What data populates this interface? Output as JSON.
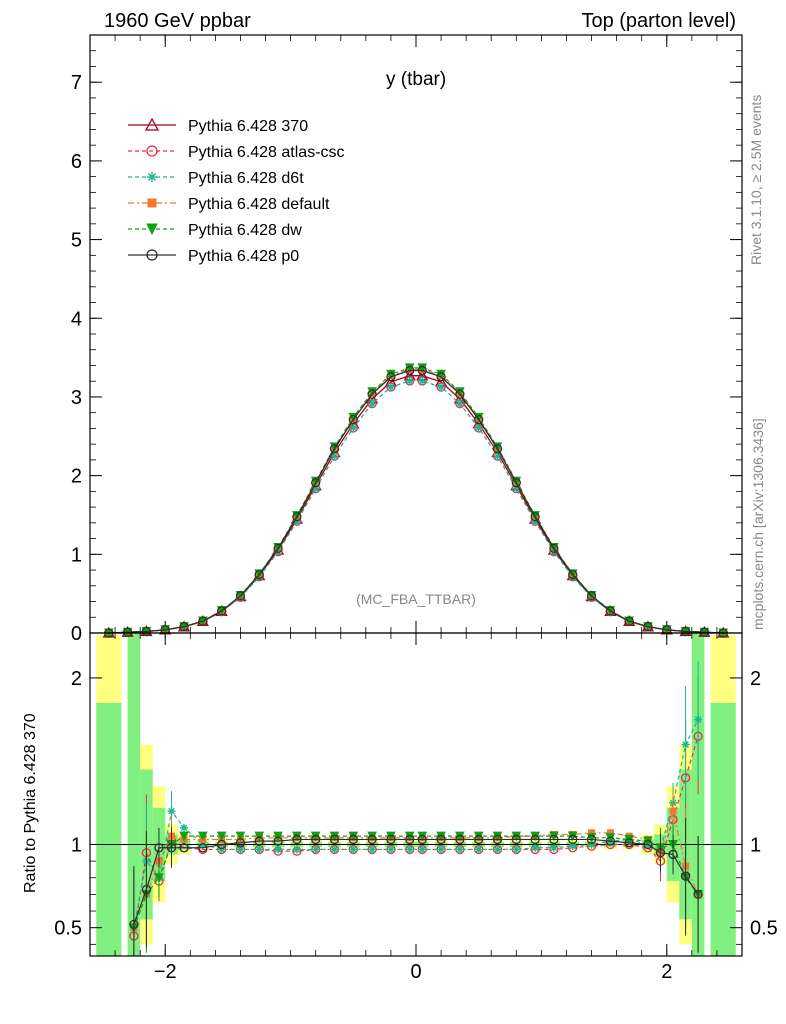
{
  "header": {
    "left": "1960 GeV ppbar",
    "right": "Top (parton level)"
  },
  "side": {
    "rivet": "Rivet 3.1.10, ≥ 2.5M events",
    "mcplots": "mcplots.cern.ch [arXiv:1306.3436]"
  },
  "colors": {
    "p370": "#a0001c",
    "atlas": "#e8304a",
    "d6t": "#18b890",
    "default": "#f07830",
    "dw": "#10a010",
    "p0": "#303030",
    "band_yellow": "#ffff80",
    "band_green": "#80f080"
  },
  "chart_data": {
    "type": "line",
    "title": "y (tbar)",
    "annotation": "(MC_FBA_TTBAR)",
    "xlim": [
      -2.6,
      2.6
    ],
    "main": {
      "ylim": [
        0,
        7.6
      ],
      "yticks": [
        0,
        1,
        2,
        3,
        4,
        5,
        6,
        7
      ],
      "ytick_labels": [
        "0",
        "1",
        "2",
        "3",
        "4",
        "5",
        "6",
        "7"
      ]
    },
    "ratio": {
      "ylabel": "Ratio to Pythia 6.428 370",
      "ylim": [
        0.33,
        2.27
      ],
      "yticks": [
        0.5,
        1,
        2
      ],
      "ytick_labels": [
        "0.5",
        "1",
        "2"
      ]
    },
    "xticks": [
      -2,
      0,
      2
    ],
    "xtick_labels": [
      "−2",
      "0",
      "2"
    ],
    "legend": {
      "placement": "top-left",
      "entries": [
        "Pythia 6.428 370",
        "Pythia 6.428 atlas-csc",
        "Pythia 6.428 d6t",
        "Pythia 6.428 default",
        "Pythia 6.428 dw",
        "Pythia 6.428 p0"
      ]
    },
    "distribution": {
      "x": [
        -2.45,
        -2.3,
        -2.15,
        -2.0,
        -1.85,
        -1.7,
        -1.55,
        -1.4,
        -1.25,
        -1.1,
        -0.95,
        -0.8,
        -0.65,
        -0.5,
        -0.35,
        -0.2,
        -0.05,
        0.05,
        0.2,
        0.35,
        0.5,
        0.65,
        0.8,
        0.95,
        1.1,
        1.25,
        1.4,
        1.55,
        1.7,
        1.85,
        2.0,
        2.15,
        2.3,
        2.45
      ],
      "reference": [
        0.0,
        0.01,
        0.02,
        0.04,
        0.08,
        0.15,
        0.28,
        0.47,
        0.74,
        1.07,
        1.47,
        1.9,
        2.33,
        2.7,
        3.02,
        3.24,
        3.32,
        3.32,
        3.24,
        3.02,
        2.7,
        2.33,
        1.9,
        1.47,
        1.07,
        0.74,
        0.47,
        0.28,
        0.15,
        0.08,
        0.04,
        0.02,
        0.01,
        0.0
      ]
    },
    "ratio_series": {
      "x": [
        -2.25,
        -2.15,
        -2.05,
        -1.95,
        -1.85,
        -1.7,
        -1.55,
        -1.4,
        -1.25,
        -1.1,
        -0.95,
        -0.8,
        -0.65,
        -0.5,
        -0.35,
        -0.2,
        -0.05,
        0.05,
        0.2,
        0.35,
        0.5,
        0.65,
        0.8,
        0.95,
        1.1,
        1.25,
        1.4,
        1.55,
        1.7,
        1.85,
        1.95,
        2.05,
        2.15,
        2.25
      ],
      "series": [
        {
          "name": "Pythia 6.428 atlas-csc",
          "key": "atlas",
          "values": [
            0.45,
            0.95,
            0.78,
            1.02,
            0.98,
            0.97,
            0.97,
            0.97,
            0.97,
            0.96,
            0.96,
            0.97,
            0.97,
            0.97,
            0.97,
            0.97,
            0.97,
            0.97,
            0.97,
            0.97,
            0.97,
            0.97,
            0.97,
            0.97,
            0.97,
            0.98,
            0.99,
            1.0,
            1.0,
            0.98,
            0.9,
            1.15,
            1.4,
            1.65
          ]
        },
        {
          "name": "Pythia 6.428 d6t",
          "key": "d6t",
          "values": [
            0.5,
            0.9,
            0.8,
            1.2,
            1.1,
            1.0,
            0.97,
            0.97,
            0.97,
            0.97,
            0.97,
            0.97,
            0.97,
            0.97,
            0.97,
            0.97,
            0.97,
            0.97,
            0.97,
            0.97,
            0.97,
            0.97,
            0.97,
            0.98,
            0.98,
            0.99,
            1.0,
            1.02,
            1.03,
            1.0,
            0.97,
            1.25,
            1.6,
            1.75
          ]
        },
        {
          "name": "Pythia 6.428 default",
          "key": "default",
          "values": [
            0.5,
            0.7,
            0.9,
            1.05,
            1.03,
            1.03,
            1.03,
            1.03,
            1.04,
            1.04,
            1.04,
            1.04,
            1.04,
            1.04,
            1.04,
            1.04,
            1.04,
            1.04,
            1.04,
            1.04,
            1.04,
            1.04,
            1.05,
            1.05,
            1.06,
            1.06,
            1.07,
            1.07,
            1.05,
            1.03,
            0.95,
            1.2,
            0.87,
            0.7
          ]
        },
        {
          "name": "Pythia 6.428 dw",
          "key": "dw",
          "values": [
            0.5,
            0.7,
            0.8,
            1.0,
            1.05,
            1.05,
            1.05,
            1.05,
            1.05,
            1.05,
            1.05,
            1.05,
            1.05,
            1.05,
            1.05,
            1.05,
            1.05,
            1.05,
            1.05,
            1.05,
            1.05,
            1.05,
            1.05,
            1.05,
            1.05,
            1.05,
            1.04,
            1.04,
            1.03,
            1.02,
            0.98,
            1.0,
            0.8,
            0.7
          ]
        },
        {
          "name": "Pythia 6.428 p0",
          "key": "p0",
          "values": [
            0.52,
            0.73,
            0.98,
            0.98,
            0.98,
            0.98,
            1.0,
            1.01,
            1.02,
            1.02,
            1.03,
            1.03,
            1.03,
            1.03,
            1.03,
            1.03,
            1.03,
            1.03,
            1.03,
            1.03,
            1.03,
            1.03,
            1.03,
            1.03,
            1.03,
            1.03,
            1.03,
            1.02,
            1.01,
            1.0,
            0.95,
            0.94,
            0.81,
            0.7
          ]
        }
      ]
    }
  }
}
